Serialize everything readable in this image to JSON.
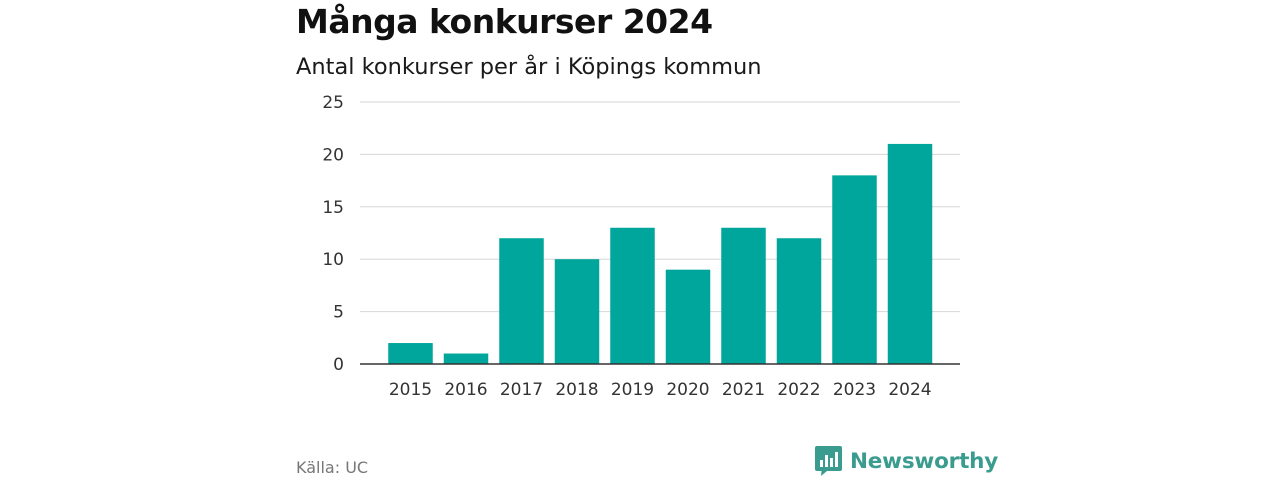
{
  "title": "Många konkurser 2024",
  "subtitle": "Antal konkurser per år i Köpings kommun",
  "source": "Källa: UC",
  "brand": {
    "name": "Newsworthy",
    "logo_icon": "newsworthy-logo-icon",
    "color": "#3a9c8e"
  },
  "colors": {
    "bar": "#00a59b",
    "grid": "#d6d6d6",
    "axis": "#333333"
  },
  "chart_data": {
    "type": "bar",
    "categories": [
      "2015",
      "2016",
      "2017",
      "2018",
      "2019",
      "2020",
      "2021",
      "2022",
      "2023",
      "2024"
    ],
    "values": [
      2,
      1,
      12,
      10,
      13,
      9,
      13,
      12,
      18,
      21
    ],
    "title": "Många konkurser 2024",
    "subtitle": "Antal konkurser per år i Köpings kommun",
    "xlabel": "",
    "ylabel": "",
    "ylim": [
      0,
      25
    ],
    "yticks": [
      0,
      5,
      10,
      15,
      20,
      25
    ],
    "grid": true,
    "legend": "none"
  }
}
